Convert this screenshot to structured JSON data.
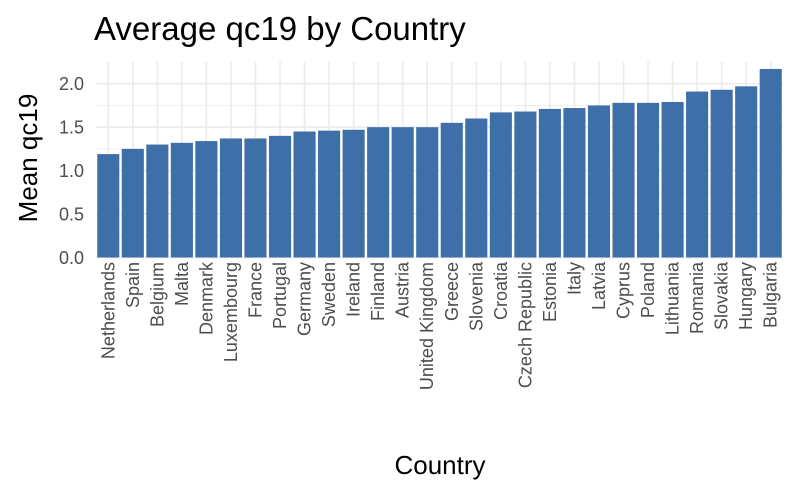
{
  "chart_data": {
    "type": "bar",
    "title": "Average qc19 by Country",
    "xlabel": "Country",
    "ylabel": "Mean qc19",
    "ylim": [
      0,
      2.25
    ],
    "yticks": [
      "0.0",
      "0.5",
      "1.0",
      "1.5",
      "2.0"
    ],
    "grid": true,
    "bar_color": "#3E6FA8",
    "categories": [
      "Netherlands",
      "Spain",
      "Belgium",
      "Malta",
      "Denmark",
      "Luxembourg",
      "France",
      "Portugal",
      "Germany",
      "Sweden",
      "Ireland",
      "Finland",
      "Austria",
      "United Kingdom",
      "Greece",
      "Slovenia",
      "Croatia",
      "Czech Republic",
      "Estonia",
      "Italy",
      "Latvia",
      "Cyprus",
      "Poland",
      "Lithuania",
      "Romania",
      "Slovakia",
      "Hungary",
      "Bulgaria"
    ],
    "values": [
      1.19,
      1.25,
      1.3,
      1.32,
      1.34,
      1.37,
      1.37,
      1.4,
      1.45,
      1.46,
      1.47,
      1.5,
      1.5,
      1.5,
      1.55,
      1.6,
      1.67,
      1.68,
      1.71,
      1.72,
      1.75,
      1.78,
      1.78,
      1.79,
      1.91,
      1.93,
      1.97,
      2.17
    ]
  }
}
